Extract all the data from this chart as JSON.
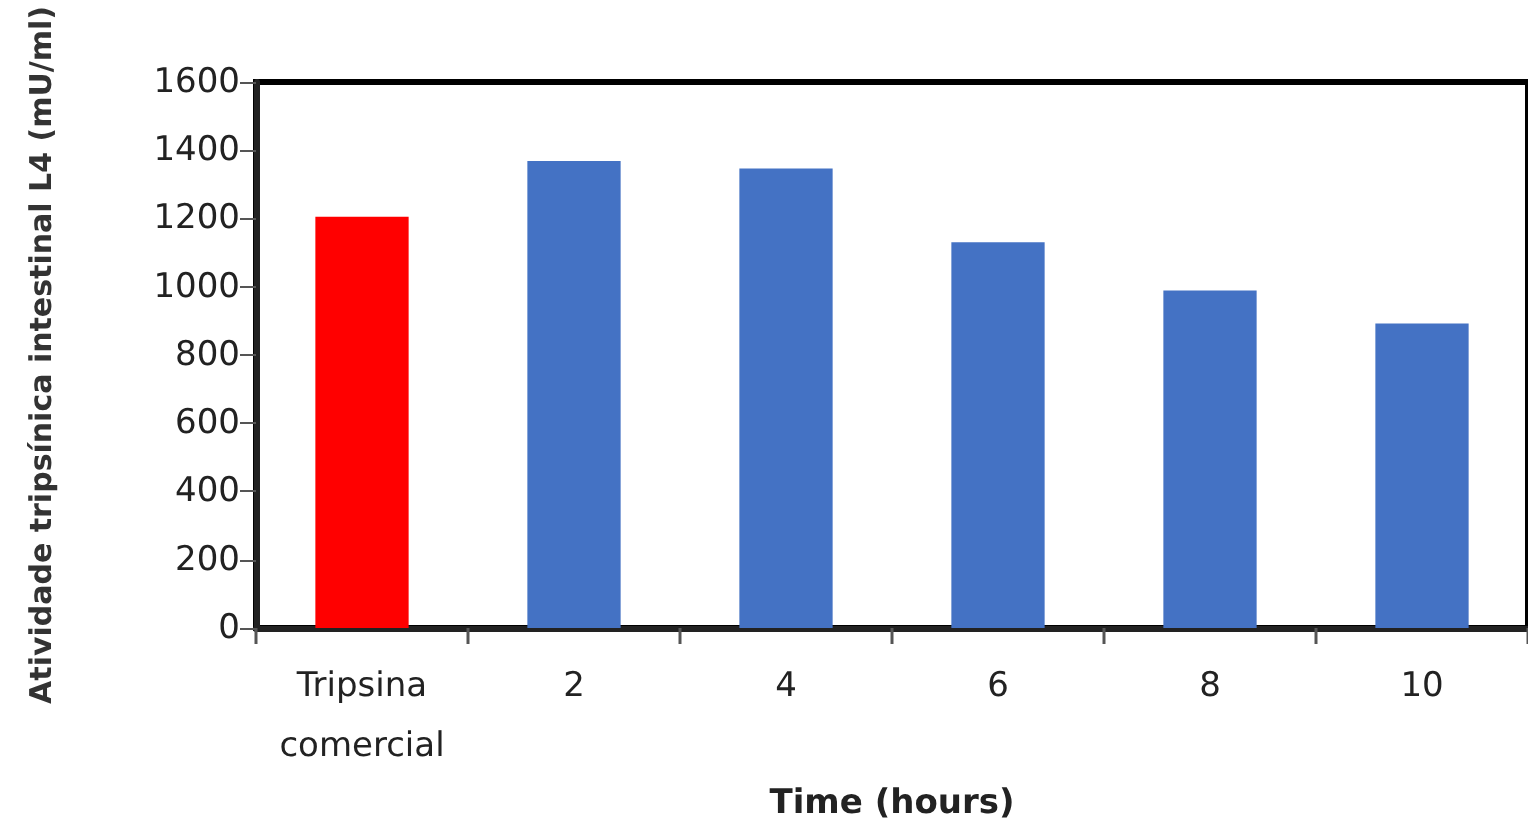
{
  "chart_data": {
    "type": "bar",
    "xlabel": "Time (hours)",
    "ylabel": "Atividade tripsínica intestinal L4 (mU/ml)",
    "categories": [
      "Tripsina\ncomercial",
      "2",
      "4",
      "6",
      "8",
      "10"
    ],
    "values": [
      1205,
      1368,
      1346,
      1130,
      989,
      892
    ],
    "colors": [
      "#ff0000",
      "#4472c4",
      "#4472c4",
      "#4472c4",
      "#4472c4",
      "#4472c4"
    ],
    "ylim": [
      0,
      1600
    ],
    "yticks": [
      0,
      200,
      400,
      600,
      800,
      1000,
      1200,
      1400,
      1600
    ]
  }
}
